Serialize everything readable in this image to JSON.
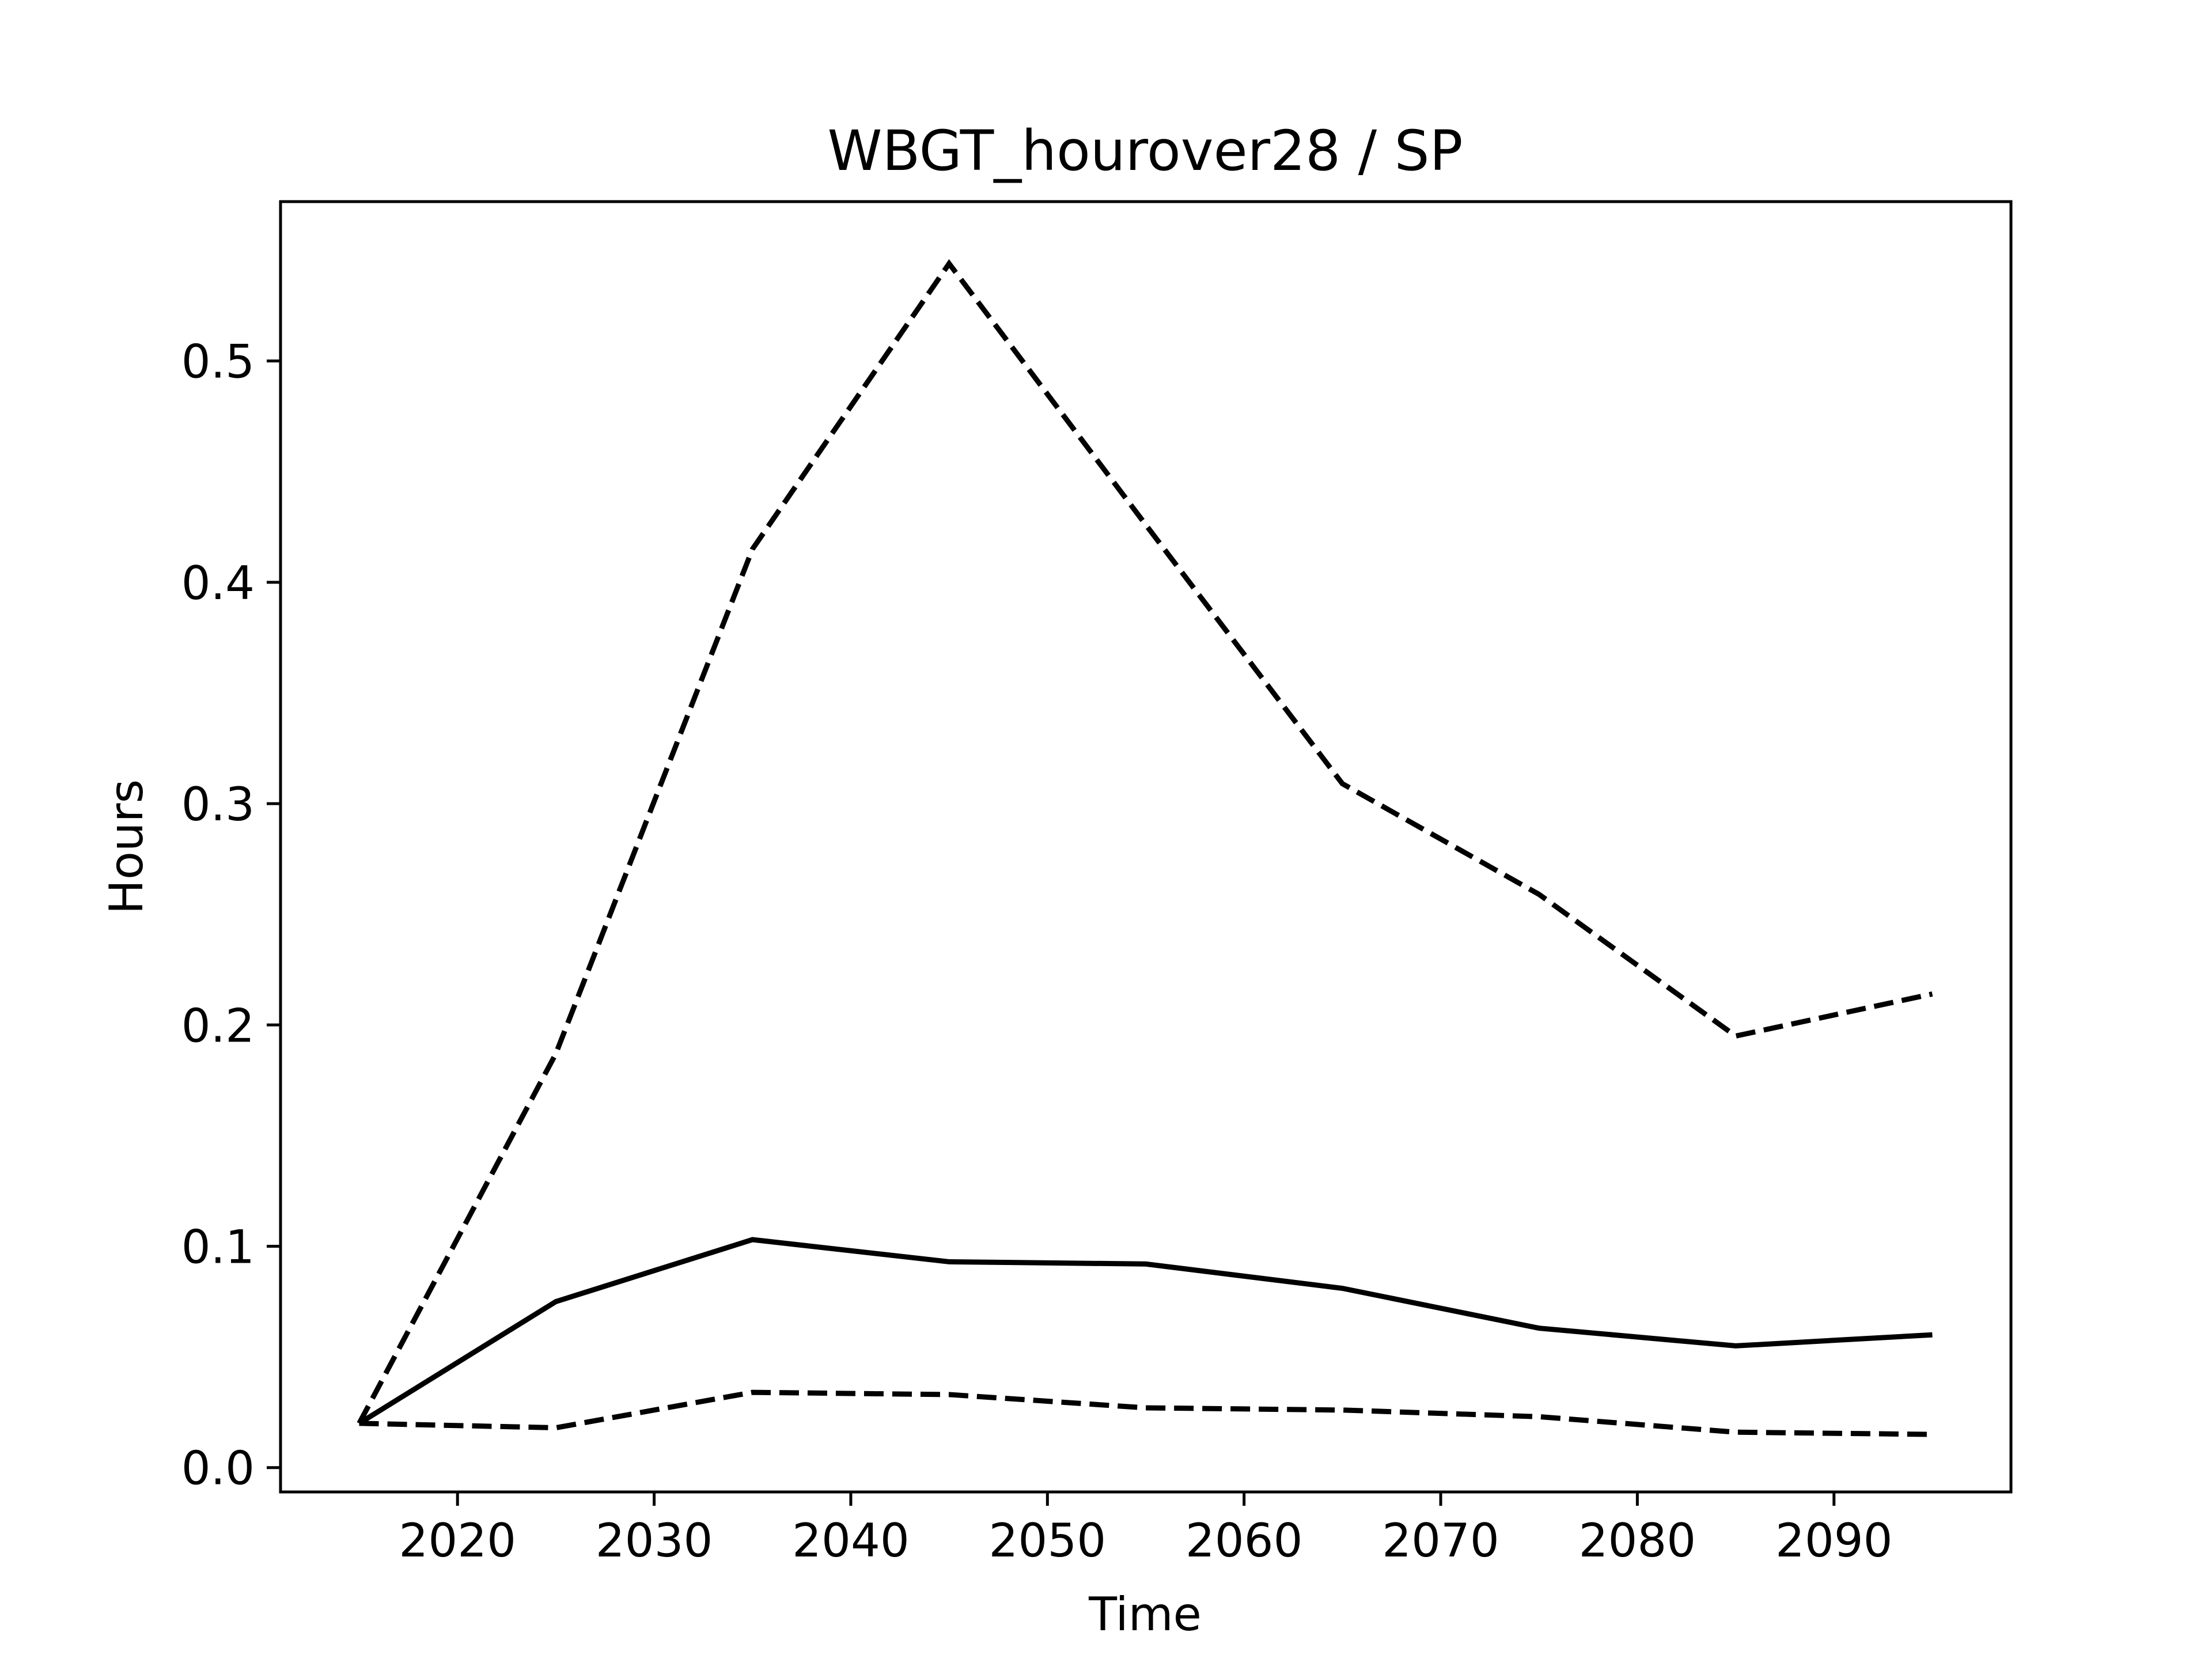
{
  "chart_data": {
    "type": "line",
    "title": "WBGT_hourover28 / SP",
    "xlabel": "Time",
    "ylabel": "Hours",
    "xlim": [
      2011,
      2099
    ],
    "ylim": [
      -0.011,
      0.572
    ],
    "xticks": [
      2020,
      2030,
      2040,
      2050,
      2060,
      2070,
      2080,
      2090
    ],
    "yticks": [
      0.0,
      0.1,
      0.2,
      0.3,
      0.4,
      0.5
    ],
    "ytick_labels": [
      "0.0",
      "0.1",
      "0.2",
      "0.3",
      "0.4",
      "0.5"
    ],
    "grid": false,
    "x": [
      2015,
      2025,
      2035,
      2045,
      2055,
      2065,
      2075,
      2085,
      2095
    ],
    "series": [
      {
        "style": "solid",
        "color": "#000000",
        "values": [
          0.02,
          0.075,
          0.103,
          0.093,
          0.092,
          0.081,
          0.063,
          0.055,
          0.06
        ]
      },
      {
        "style": "dashed",
        "color": "#000000",
        "values": [
          0.02,
          0.187,
          0.415,
          0.544,
          0.426,
          0.309,
          0.259,
          0.195,
          0.214
        ]
      },
      {
        "style": "dashed",
        "color": "#000000",
        "values": [
          0.02,
          0.018,
          0.034,
          0.033,
          0.027,
          0.026,
          0.023,
          0.016,
          0.015
        ]
      }
    ]
  }
}
